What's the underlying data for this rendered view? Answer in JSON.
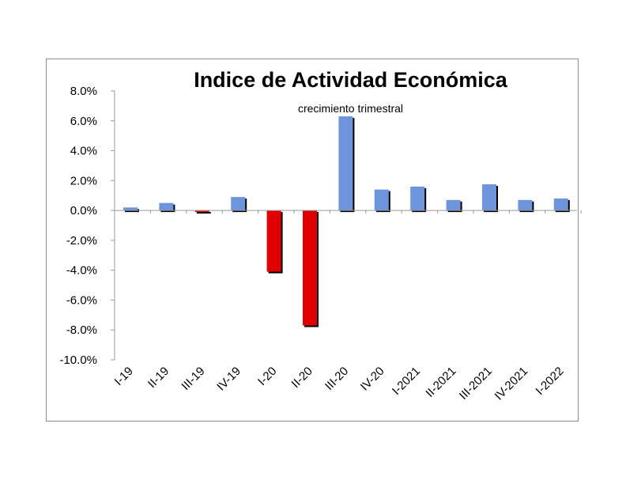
{
  "chart_data": {
    "type": "bar",
    "title": "Indice de Actividad Económica",
    "subtitle": "crecimiento trimestral",
    "categories": [
      "I-19",
      "II-19",
      "III-19",
      "IV-19",
      "I-20",
      "II-20",
      "III-20",
      "IV-20",
      "I-2021",
      "II-2021",
      "III-2021",
      "IV-2021",
      "I-2022"
    ],
    "values": [
      0.2,
      0.5,
      -0.1,
      0.9,
      -4.1,
      -7.7,
      6.3,
      1.4,
      1.6,
      0.7,
      1.75,
      0.7,
      0.8
    ],
    "ylim": [
      -10,
      8
    ],
    "yticks": [
      8,
      6,
      4,
      2,
      0,
      -2,
      -4,
      -6,
      -8,
      -10
    ],
    "ytick_labels": [
      "8.0%",
      "6.0%",
      "4.0%",
      "2.0%",
      "0.0%",
      "-2.0%",
      "-4.0%",
      "-6.0%",
      "-8.0%",
      "-10.0%"
    ],
    "xlabel": "",
    "ylabel": "",
    "grid": false,
    "legend": "none",
    "colors": {
      "positive": "#6e95db",
      "negative": "#e00000",
      "shadow": "#000000",
      "axis": "#9a9a9a"
    }
  }
}
